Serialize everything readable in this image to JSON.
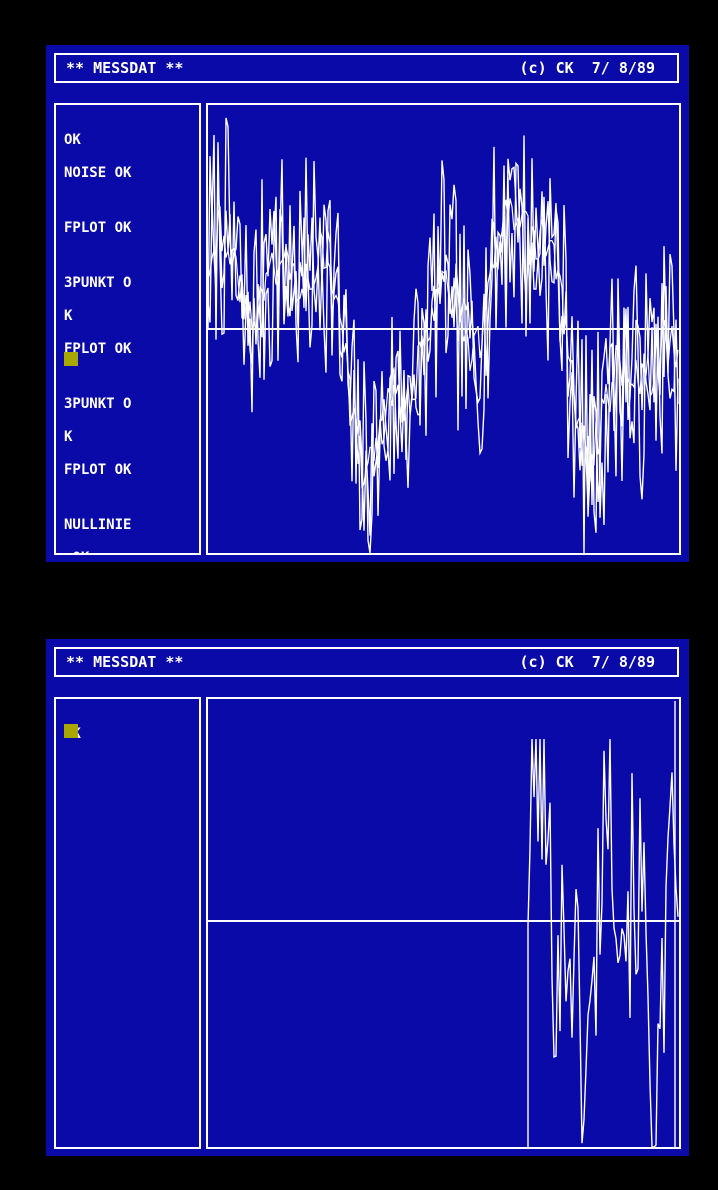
{
  "screens": [
    {
      "title_left": "** MESSDAT **",
      "title_right": "(c) CK  7/ 8/89",
      "log": [
        "OK",
        "NOISE OK",
        "",
        "FPLOT OK",
        "",
        "3PUNKT O",
        "K",
        "FPLOT OK",
        "",
        "3PUNKT O",
        "K",
        "FPLOT OK",
        "",
        "NULLINIE",
        " OK"
      ],
      "cursor_color": "#a8a800",
      "plot": {
        "waveform": "multi-trace noisy signal (raw + smoothed)",
        "zero_line": true
      }
    },
    {
      "title_left": "** MESSDAT **",
      "title_right": "(c) CK  7/ 8/89",
      "log": [
        "OK"
      ],
      "cursor_color": "#a8a800",
      "plot": {
        "waveform": "partial noisy signal in right portion",
        "zero_line": true
      }
    }
  ],
  "colors": {
    "screen_bg": "#0a0aa8",
    "foreground": "#ffffff",
    "outer_bg": "#000000"
  }
}
